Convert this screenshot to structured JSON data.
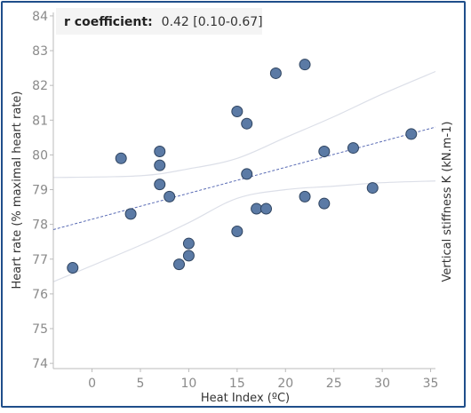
{
  "chart_data": {
    "type": "scatter",
    "xlabel": "Heat Index (ºC)",
    "ylabel": "Heart rate (% maximal heart rate)",
    "y2label": "Vertical stiffness K (kN.m-1)",
    "xlim": [
      -4,
      35.5
    ],
    "ylim": [
      73.85,
      84.1
    ],
    "x_ticks": [
      0,
      5,
      10,
      15,
      20,
      25,
      30,
      35
    ],
    "y_ticks": [
      74,
      75,
      76,
      77,
      78,
      79,
      80,
      81,
      82,
      83,
      84
    ],
    "annotation": {
      "label": "r coefficient",
      "separator": ":",
      "value": "0.42 [0.10-0.67]"
    },
    "grid": false,
    "points": [
      {
        "x": -2,
        "y": 76.75
      },
      {
        "x": 3,
        "y": 79.9
      },
      {
        "x": 4,
        "y": 78.3
      },
      {
        "x": 7,
        "y": 80.1
      },
      {
        "x": 7,
        "y": 79.7
      },
      {
        "x": 7,
        "y": 79.15
      },
      {
        "x": 8,
        "y": 78.8
      },
      {
        "x": 9,
        "y": 76.85
      },
      {
        "x": 10,
        "y": 77.45
      },
      {
        "x": 10,
        "y": 77.1
      },
      {
        "x": 15,
        "y": 81.25
      },
      {
        "x": 15,
        "y": 77.8
      },
      {
        "x": 16,
        "y": 80.9
      },
      {
        "x": 16,
        "y": 79.45
      },
      {
        "x": 17,
        "y": 78.45
      },
      {
        "x": 18,
        "y": 78.45
      },
      {
        "x": 19,
        "y": 82.35
      },
      {
        "x": 22,
        "y": 82.6
      },
      {
        "x": 22,
        "y": 78.8
      },
      {
        "x": 24,
        "y": 80.1
      },
      {
        "x": 24,
        "y": 78.6
      },
      {
        "x": 27,
        "y": 80.2
      },
      {
        "x": 29,
        "y": 79.05
      },
      {
        "x": 33,
        "y": 80.6
      }
    ],
    "trend_line": {
      "x": [
        -4,
        35.5
      ],
      "y": [
        77.85,
        80.8
      ]
    },
    "confidence_band": {
      "upper": [
        [
          -4,
          79.35
        ],
        [
          5,
          79.4
        ],
        [
          10,
          79.6
        ],
        [
          15,
          79.9
        ],
        [
          20,
          80.5
        ],
        [
          25,
          81.1
        ],
        [
          30,
          81.75
        ],
        [
          35.5,
          82.4
        ]
      ],
      "lower": [
        [
          -4,
          76.35
        ],
        [
          5,
          77.4
        ],
        [
          10,
          78.05
        ],
        [
          15,
          78.75
        ],
        [
          20,
          79.0
        ],
        [
          25,
          79.1
        ],
        [
          30,
          79.2
        ],
        [
          35.5,
          79.25
        ]
      ]
    },
    "colors": {
      "point_fill": "#5b7aa5",
      "point_stroke": "#2f4460",
      "trend": "#5a6cb5",
      "band": "#dcdfe8",
      "axis": "#bbbbbb",
      "frame": "#1f4e8a",
      "annotation_bg": "#f4f4f4"
    }
  }
}
